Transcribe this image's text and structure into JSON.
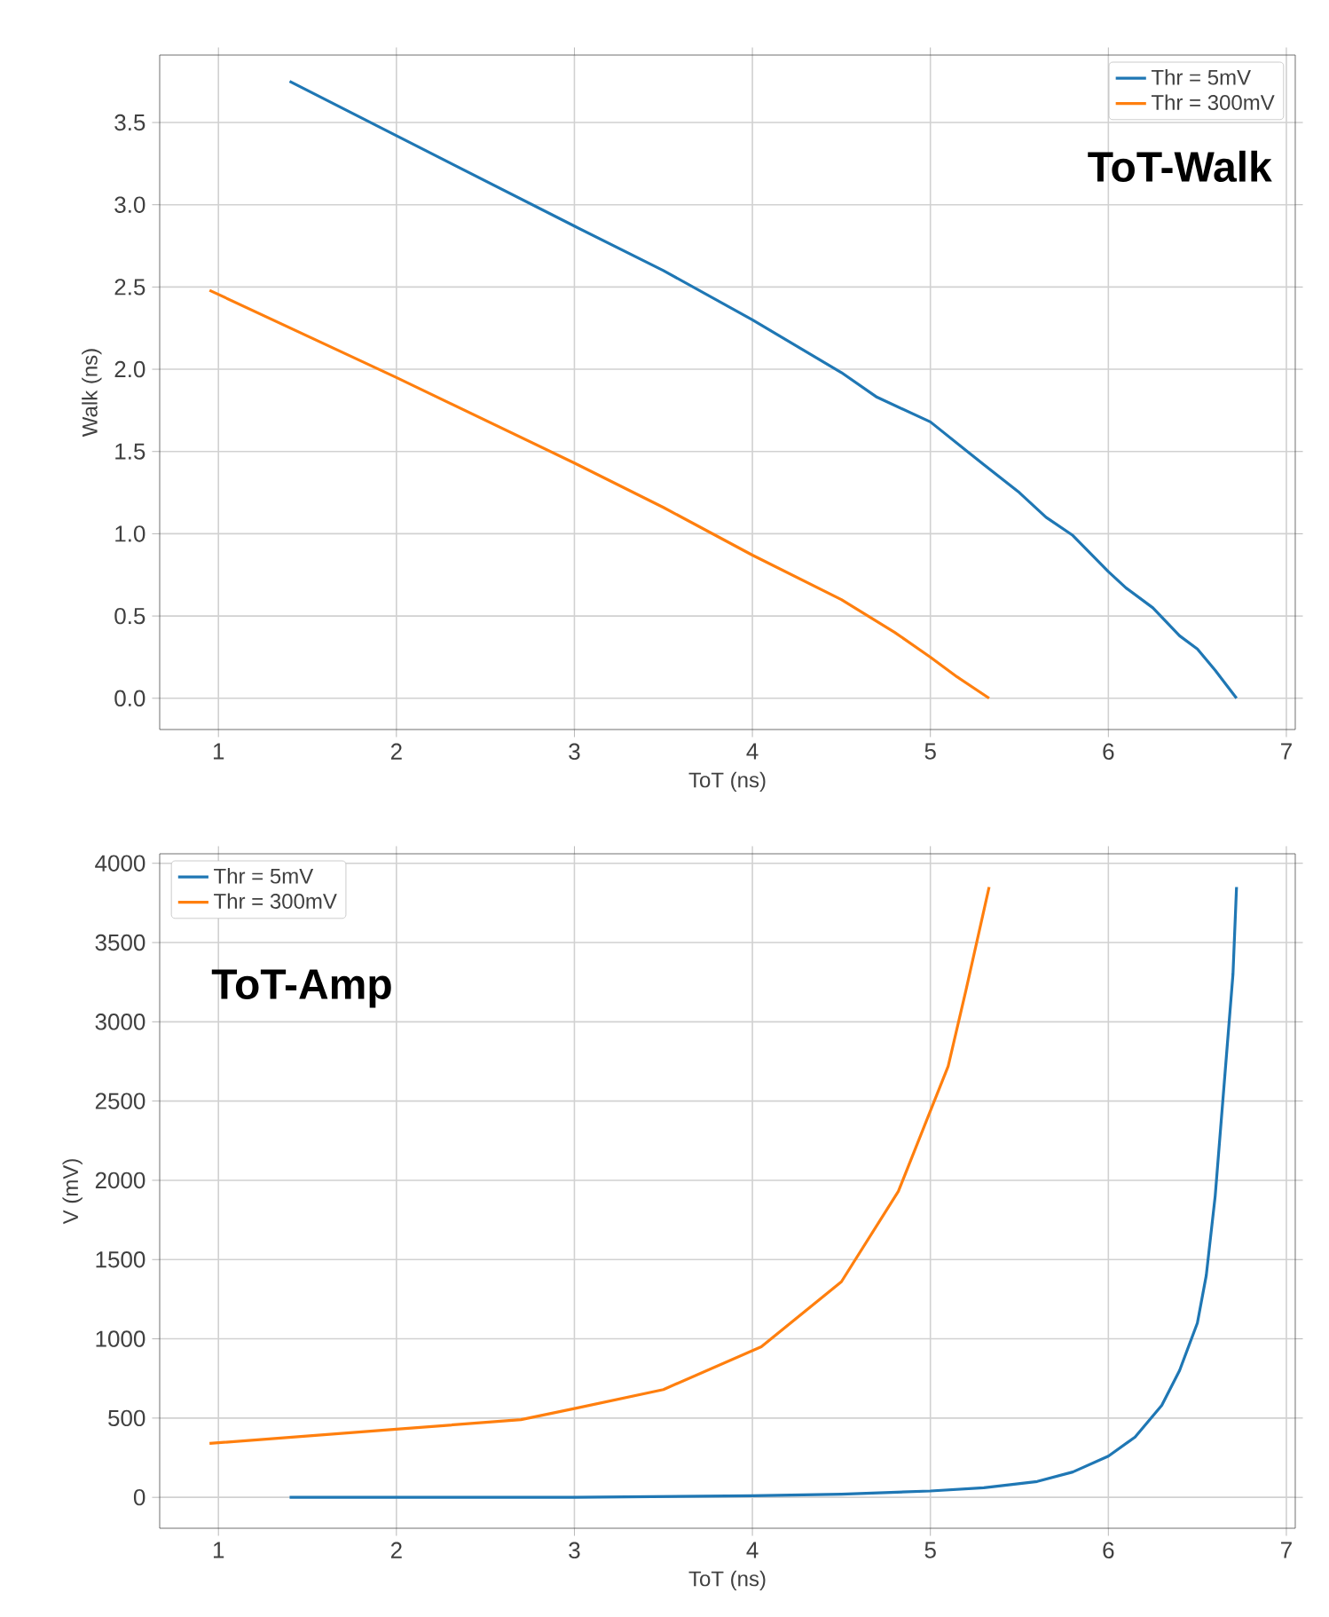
{
  "chart_data": [
    {
      "type": "line",
      "xlabel": "ToT (ns)",
      "ylabel": "Walk (ns)",
      "annotations": [
        "ToT-Walk"
      ],
      "xlim": [
        0.67,
        7.05
      ],
      "ylim": [
        -0.19,
        3.91
      ],
      "xticks": [
        1,
        2,
        3,
        4,
        5,
        6,
        7
      ],
      "yticks": [
        {
          "value": 0,
          "label": "0.0"
        },
        0.5,
        {
          "value": 1,
          "label": "1.0"
        },
        1.5,
        {
          "value": 2,
          "label": "2.0"
        },
        2.5,
        {
          "value": 3,
          "label": "3.0"
        },
        3.5
      ],
      "grid": true,
      "legend": "top right",
      "series": [
        {
          "name": "Thr = 5mV",
          "color": "#1f77b4",
          "x": [
            1.4,
            2,
            3,
            3.5,
            4,
            4.5,
            4.7,
            5,
            5.3,
            5.5,
            5.65,
            5.8,
            6,
            6.1,
            6.25,
            6.4,
            6.5,
            6.6,
            6.72
          ],
          "values": [
            3.75,
            3.42,
            2.87,
            2.6,
            2.3,
            1.98,
            1.83,
            1.68,
            1.42,
            1.25,
            1.1,
            0.99,
            0.77,
            0.67,
            0.55,
            0.38,
            0.3,
            0.17,
            0.0
          ]
        },
        {
          "name": "Thr = 300mV",
          "color": "#ff7f0e",
          "x": [
            0.95,
            2,
            3,
            3.5,
            4,
            4.5,
            4.8,
            5,
            5.15,
            5.33
          ],
          "values": [
            2.48,
            1.95,
            1.43,
            1.16,
            0.87,
            0.6,
            0.4,
            0.25,
            0.13,
            0.0
          ]
        }
      ]
    },
    {
      "type": "line",
      "xlabel": "ToT (ns)",
      "ylabel": "V (mV)",
      "annotations": [
        "ToT-Amp"
      ],
      "xlim": [
        0.67,
        7.05
      ],
      "ylim": [
        -195,
        4060
      ],
      "xticks": [
        1,
        2,
        3,
        4,
        5,
        6,
        7
      ],
      "yticks": [
        0,
        500,
        1000,
        1500,
        2000,
        2500,
        3000,
        3500,
        4000
      ],
      "grid": true,
      "legend": "top left",
      "series": [
        {
          "name": "Thr = 5mV",
          "color": "#1f77b4",
          "x": [
            1.4,
            3,
            4,
            4.5,
            5,
            5.3,
            5.6,
            5.8,
            6,
            6.15,
            6.3,
            6.4,
            6.5,
            6.55,
            6.6,
            6.65,
            6.7,
            6.72
          ],
          "values": [
            0,
            0,
            10,
            20,
            40,
            60,
            100,
            160,
            260,
            380,
            580,
            800,
            1100,
            1400,
            1900,
            2600,
            3300,
            3850
          ]
        },
        {
          "name": "Thr = 300mV",
          "color": "#ff7f0e",
          "x": [
            0.95,
            2,
            2.7,
            3,
            3.5,
            4.05,
            4.5,
            4.82,
            5.1,
            5.2,
            5.33
          ],
          "values": [
            340,
            430,
            490,
            560,
            680,
            950,
            1360,
            1930,
            2720,
            3200,
            3850
          ]
        }
      ]
    }
  ]
}
